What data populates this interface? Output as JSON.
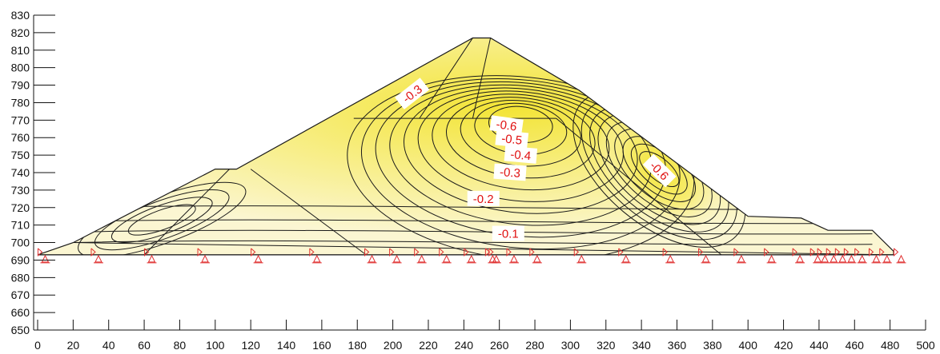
{
  "chart_data": {
    "type": "contour",
    "title": "",
    "xlabel": "",
    "ylabel": "",
    "xlim": [
      0,
      500
    ],
    "ylim": [
      650,
      830
    ],
    "x_ticks": [
      0,
      20,
      40,
      60,
      80,
      100,
      120,
      140,
      160,
      180,
      200,
      220,
      240,
      260,
      280,
      300,
      320,
      340,
      360,
      380,
      400,
      420,
      440,
      460,
      480,
      500
    ],
    "y_ticks": [
      650,
      660,
      670,
      680,
      690,
      700,
      710,
      720,
      730,
      740,
      750,
      760,
      770,
      780,
      790,
      800,
      810,
      820,
      830
    ],
    "grid": false,
    "colors": {
      "fill_light": "#fbf6d2",
      "fill_mid": "#f9f0a4",
      "fill_dark": "#f3e436",
      "contour_line": "#1a1a1a",
      "label_text": "#e01010",
      "support": "#e03030"
    },
    "dam_outline": [
      [
        0,
        693
      ],
      [
        20,
        700
      ],
      [
        100,
        742
      ],
      [
        112,
        742
      ],
      [
        245,
        817
      ],
      [
        255,
        817
      ],
      [
        305,
        787
      ],
      [
        400,
        715
      ],
      [
        430,
        714
      ],
      [
        445,
        707
      ],
      [
        470,
        707
      ],
      [
        482,
        695
      ],
      [
        482,
        693
      ]
    ],
    "internal_lines": [
      [
        [
          60,
          693
        ],
        [
          108,
          742
        ]
      ],
      [
        [
          120,
          742
        ],
        [
          185,
          693
        ]
      ],
      [
        [
          178,
          771
        ],
        [
          292,
          771
        ]
      ],
      [
        [
          245,
          817
        ],
        [
          215,
          771
        ]
      ],
      [
        [
          255,
          817
        ],
        [
          245,
          771
        ]
      ],
      [
        [
          292,
          771
        ],
        [
          385,
          693
        ]
      ],
      [
        [
          20,
          700
        ],
        [
          482,
          693
        ]
      ],
      [
        [
          0,
          693
        ],
        [
          482,
          693
        ]
      ]
    ],
    "contour_labels": [
      {
        "text": "-0.3",
        "x": 211,
        "y": 785,
        "rotation": -38
      },
      {
        "text": "-0.6",
        "x": 264,
        "y": 767,
        "rotation": 8
      },
      {
        "text": "-0.5",
        "x": 267,
        "y": 759,
        "rotation": 6
      },
      {
        "text": "-0.4",
        "x": 272,
        "y": 750,
        "rotation": 5
      },
      {
        "text": "-0.3",
        "x": 266,
        "y": 740,
        "rotation": 4
      },
      {
        "text": "-0.2",
        "x": 251,
        "y": 725,
        "rotation": 0
      },
      {
        "text": "-0.1",
        "x": 265,
        "y": 705,
        "rotation": 0
      },
      {
        "text": "-0.6",
        "x": 350,
        "y": 741,
        "rotation": 45
      }
    ],
    "supports_x": [
      2,
      32,
      62,
      92,
      122,
      155,
      186,
      200,
      214,
      228,
      242,
      254,
      256,
      266,
      279,
      304,
      329,
      354,
      374,
      394,
      411,
      427,
      437,
      441,
      446,
      451,
      456,
      462,
      470,
      476,
      484
    ]
  }
}
